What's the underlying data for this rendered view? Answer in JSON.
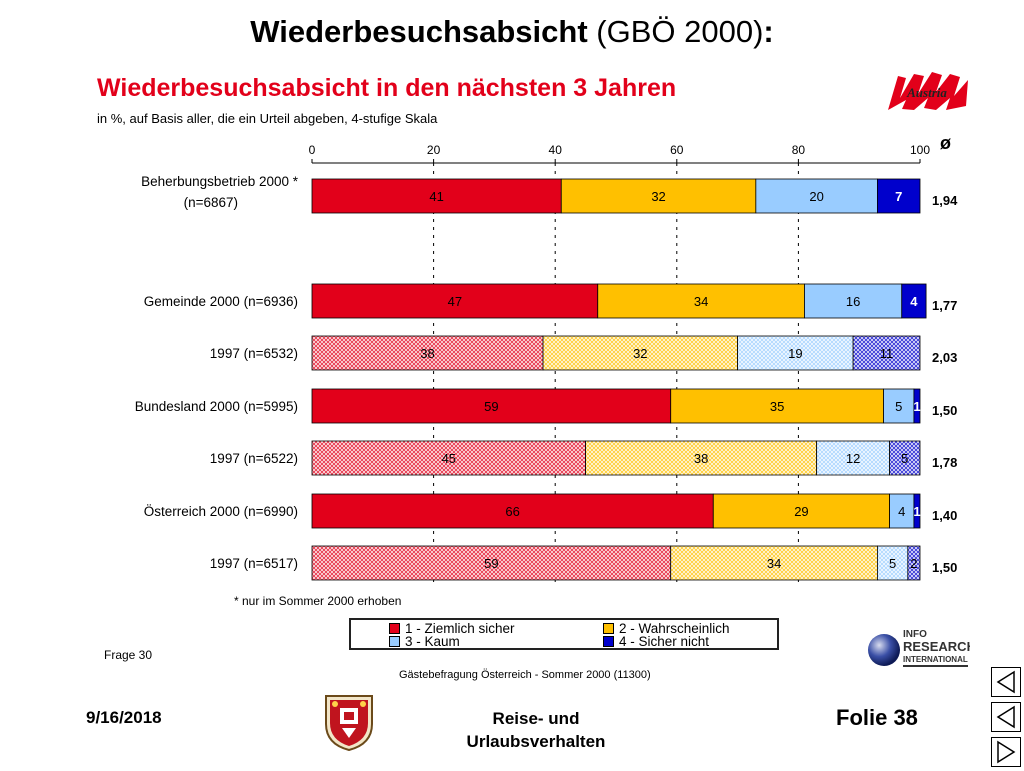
{
  "slide": {
    "title_bold": "Wiederbesuchsabsicht",
    "title_regular": " (GBÖ 2000)",
    "title_colon": ":",
    "footer_date": "9/16/2018",
    "footer_topic_line1": "Reise- und",
    "footer_topic_line2": "Urlaubsverhalten",
    "footer_slide": "Folie 38"
  },
  "logos": {
    "austria": "Austria",
    "info_line1": "INFO",
    "info_line2": "RESEARCH",
    "info_line3": "INTERNATIONAL"
  },
  "chart_data": {
    "type": "bar",
    "orientation": "horizontal",
    "stacked": true,
    "title": "Wiederbesuchsabsicht in den nächsten 3 Jahren",
    "subtitle": "in %, auf Basis aller, die ein Urteil abgeben, 4-stufige Skala",
    "xlim": [
      0,
      100
    ],
    "xticks": [
      "0",
      "20",
      "40",
      "60",
      "80",
      "100"
    ],
    "avg_header": "ø",
    "categories": [
      "Beherbungsbetrieb 2000 *\n(n=6867)",
      "Gemeinde 2000 (n=6936)",
      "1997 (n=6532)",
      "Bundesland 2000 (n=5995)",
      "1997 (n=6522)",
      "Österreich 2000 (n=6990)",
      "1997 (n=6517)"
    ],
    "averages": [
      "1,94",
      "1,77",
      "2,03",
      "1,50",
      "1,78",
      "1,40",
      "1,50"
    ],
    "hatched_rows": [
      false,
      false,
      true,
      false,
      true,
      false,
      true
    ],
    "series": [
      {
        "name": "1 - Ziemlich sicher",
        "color": "#e2001a",
        "values": [
          41,
          47,
          38,
          59,
          45,
          66,
          59
        ],
        "labels": [
          "41",
          "47",
          "38",
          "59",
          "45",
          "66",
          "59"
        ]
      },
      {
        "name": "2 - Wahrscheinlich",
        "color": "#ffc000",
        "values": [
          32,
          34,
          32,
          35,
          38,
          29,
          34
        ],
        "labels": [
          "32",
          "34",
          "32",
          "35",
          "38",
          "29",
          "34"
        ]
      },
      {
        "name": "3 - Kaum",
        "color": "#99ccff",
        "values": [
          20,
          16,
          19,
          5,
          12,
          4,
          5
        ],
        "labels": [
          "20",
          "16",
          "19",
          "5",
          "12",
          "4",
          "5"
        ]
      },
      {
        "name": "4 - Sicher nicht",
        "color": "#0000cc",
        "values": [
          7,
          4,
          11,
          1,
          5,
          1,
          2
        ],
        "labels": [
          "7",
          "4",
          "11",
          "1",
          "5",
          "1",
          "2"
        ]
      }
    ],
    "footnote": "* nur im Sommer 2000 erhoben",
    "question": "Frage 30",
    "source": "Gästebefragung Österreich - Sommer 2000 (11300)",
    "grid": true
  }
}
